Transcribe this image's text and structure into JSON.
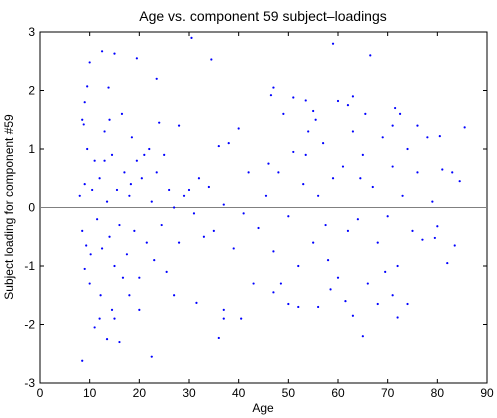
{
  "chart_data": {
    "type": "scatter",
    "title": "Age vs. component 59 subject–loadings",
    "xlabel": "Age",
    "ylabel": "Subject loading for component #59",
    "xlim": [
      0,
      90
    ],
    "ylim": [
      -3,
      3
    ],
    "xticks": [
      0,
      10,
      20,
      30,
      40,
      50,
      60,
      70,
      80,
      90
    ],
    "yticks": [
      -3,
      -2,
      -1,
      0,
      1,
      2,
      3
    ],
    "color": "#0000ff",
    "reference_line": 0,
    "x": [
      8.5,
      8.5,
      8.8,
      9,
      9.5,
      10,
      12.5,
      13.8,
      14,
      15,
      19.5,
      23.5,
      28,
      30.5,
      34.5,
      59,
      66.5,
      47,
      46.5,
      51,
      53.5,
      55,
      60,
      62,
      63,
      72.5,
      71,
      76,
      80.5,
      85.5,
      81,
      83,
      84.5,
      83.5,
      82,
      79.5,
      77,
      80,
      74,
      72,
      71,
      68,
      65,
      63,
      56,
      52,
      50,
      47,
      43,
      40.5,
      36,
      37,
      37,
      31.5,
      27,
      22.5,
      16,
      13.5,
      11,
      12,
      14.5,
      15,
      18,
      20,
      10,
      9,
      9.3,
      8.5,
      8,
      9,
      9.5,
      10.5,
      11,
      11.5,
      12,
      12.5,
      13,
      13.5,
      14,
      14.5,
      15,
      15.5,
      16,
      16.5,
      17,
      17.5,
      18,
      18.5,
      19,
      19.5,
      20,
      20.5,
      21,
      21.5,
      22,
      22.5,
      23,
      23.5,
      24,
      24.5,
      25,
      25.5,
      26,
      27,
      28,
      29,
      30,
      31,
      32,
      33,
      34,
      35,
      36,
      37,
      38,
      39,
      40,
      41,
      42,
      44,
      46,
      47,
      48,
      49,
      50,
      51,
      52,
      53,
      54,
      55,
      56,
      57,
      58,
      59,
      60,
      61,
      62,
      63,
      64,
      65,
      66,
      67,
      68,
      69,
      70,
      71,
      72,
      73,
      74,
      75,
      76,
      78,
      79,
      12.2,
      16.7,
      13,
      10.2,
      18.3,
      53.5,
      57.5,
      61.5,
      65.5,
      69.5,
      48.5,
      71.5,
      55.5,
      45.5,
      64.5,
      58.5
    ],
    "y": [
      -2.62,
      1.5,
      1.42,
      1.8,
      2.07,
      2.48,
      2.67,
      2.05,
      1.5,
      2.63,
      2.55,
      2.2,
      1.4,
      2.9,
      2.53,
      2.8,
      2.6,
      2.05,
      1.92,
      1.88,
      1.83,
      1.65,
      1.82,
      1.75,
      1.9,
      1.6,
      1.4,
      1.4,
      1.22,
      1.37,
      0.65,
      0.6,
      0.45,
      -0.65,
      -0.95,
      -0.52,
      -0.55,
      -0.32,
      -1.65,
      -1.88,
      -1.5,
      -1.65,
      -2.2,
      -1.85,
      -1.7,
      -1.7,
      -1.65,
      -1.45,
      -1.3,
      -1.9,
      -2.23,
      -1.9,
      -1.75,
      -1.63,
      -1.5,
      -2.55,
      -2.3,
      -2.25,
      -2.05,
      -1.9,
      -1.75,
      -1.9,
      -1.5,
      -1.75,
      -1.3,
      -1.05,
      -0.65,
      -0.4,
      0.2,
      0.4,
      1.0,
      0.3,
      0.8,
      -0.2,
      0.5,
      -0.7,
      1.3,
      0.1,
      -0.5,
      0.9,
      -1.0,
      0.3,
      -0.3,
      1.6,
      0.6,
      -0.8,
      0.2,
      1.2,
      -0.4,
      0.8,
      -1.2,
      0.5,
      0.9,
      -0.6,
      1.0,
      0.1,
      -0.9,
      0.6,
      1.45,
      -0.3,
      0.9,
      -1.1,
      0.3,
      0.0,
      -0.6,
      0.2,
      0.3,
      -0.1,
      0.5,
      -0.5,
      0.35,
      -0.4,
      1.05,
      0.05,
      1.1,
      -0.7,
      1.35,
      -0.1,
      0.6,
      -0.35,
      0.75,
      -0.75,
      0.6,
      1.6,
      -0.15,
      0.95,
      -1.0,
      0.4,
      1.3,
      -0.6,
      0.2,
      1.1,
      -0.9,
      0.5,
      -1.2,
      0.7,
      -0.4,
      1.3,
      -0.2,
      0.9,
      -1.3,
      0.35,
      -0.6,
      1.2,
      -0.15,
      0.7,
      -1.0,
      0.2,
      1.0,
      -0.4,
      0.6,
      1.2,
      0.1,
      -1.5,
      -1.2,
      0.8,
      -0.8,
      0.4,
      0.9,
      -0.3,
      -1.6,
      1.6,
      -1.1,
      -1.3,
      1.7,
      1.5,
      0.2,
      0.5,
      -1.4
    ]
  }
}
